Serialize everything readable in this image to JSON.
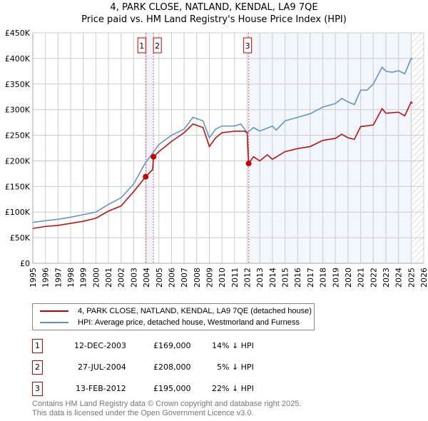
{
  "title": "4, PARK CLOSE, NATLAND, KENDAL, LA9 7QE",
  "subtitle": "Price paid vs. HM Land Registry's House Price Index (HPI)",
  "chart_data": {
    "type": "line",
    "title": "4, PARK CLOSE, NATLAND, KENDAL, LA9 7QE",
    "xlim": [
      1995,
      2026
    ],
    "ylim": [
      0,
      450000
    ],
    "yticks": [
      "£0",
      "£50K",
      "£100K",
      "£150K",
      "£200K",
      "£250K",
      "£300K",
      "£350K",
      "£400K",
      "£450K"
    ],
    "xticks": [
      "1995",
      "1996",
      "1997",
      "1998",
      "1999",
      "2000",
      "2001",
      "2002",
      "2003",
      "2004",
      "2005",
      "2006",
      "2007",
      "2008",
      "2009",
      "2010",
      "2011",
      "2012",
      "2013",
      "2014",
      "2015",
      "2016",
      "2017",
      "2018",
      "2019",
      "2020",
      "2021",
      "2022",
      "2023",
      "2024",
      "2025",
      "2026"
    ],
    "series": [
      {
        "name": "4, PARK CLOSE, NATLAND, KENDAL, LA9 7QE (detached house)",
        "color": "#cc0000",
        "x": [
          1995,
          1996,
          1997,
          1998,
          1999,
          2000,
          2001,
          2002,
          2003,
          2003.95,
          2004.5,
          2004.57,
          2005,
          2006,
          2007,
          2007.7,
          2008.5,
          2009,
          2009.5,
          2010,
          2011,
          2011.8,
          2012.0,
          2012.12,
          2012.5,
          2013,
          2013.6,
          2014,
          2015,
          2016,
          2017,
          2018,
          2019,
          2019.5,
          2020,
          2020.5,
          2021,
          2022,
          2022.7,
          2023,
          2024,
          2024.5,
          2025,
          2025.1
        ],
        "y": [
          68000,
          72000,
          74000,
          78000,
          82000,
          88000,
          102000,
          112000,
          140000,
          169000,
          183000,
          208000,
          218000,
          238000,
          255000,
          272000,
          265000,
          228000,
          245000,
          255000,
          258000,
          258000,
          255000,
          195000,
          208000,
          200000,
          212000,
          203000,
          218000,
          224000,
          228000,
          240000,
          244000,
          252000,
          245000,
          242000,
          267000,
          270000,
          302000,
          293000,
          295000,
          288000,
          315000,
          312000
        ]
      },
      {
        "name": "HPI: Average price, detached house, Westmorland and Furness",
        "color": "#5b8fd0",
        "x": [
          1995,
          1996,
          1997,
          1998,
          1999,
          2000,
          2001,
          2002,
          2003,
          2003.9,
          2004.5,
          2005,
          2006,
          2007,
          2007.7,
          2008.5,
          2009,
          2009.5,
          2010,
          2011,
          2011.5,
          2012,
          2012.5,
          2013,
          2014,
          2014.3,
          2015,
          2016,
          2017,
          2018,
          2019,
          2019.5,
          2020,
          2020.5,
          2021,
          2021.5,
          2022,
          2022.7,
          2023,
          2023.5,
          2024,
          2024.5,
          2025,
          2025.1
        ],
        "y": [
          80000,
          83000,
          86000,
          90000,
          95000,
          100000,
          115000,
          128000,
          155000,
          195000,
          215000,
          232000,
          250000,
          262000,
          285000,
          278000,
          245000,
          262000,
          268000,
          268000,
          272000,
          255000,
          265000,
          258000,
          268000,
          260000,
          278000,
          285000,
          292000,
          305000,
          312000,
          322000,
          315000,
          310000,
          338000,
          338000,
          350000,
          383000,
          375000,
          373000,
          376000,
          370000,
          400000,
          398000
        ]
      }
    ],
    "sales": [
      {
        "label": "1",
        "x": 2003.95,
        "y": 169000,
        "date": "12-DEC-2003",
        "price": "£169,000",
        "diff": "14% ↓ HPI"
      },
      {
        "label": "2",
        "x": 2004.57,
        "y": 208000,
        "date": "27-JUL-2004",
        "price": "£208,000",
        "diff": "5% ↓ HPI"
      },
      {
        "label": "3",
        "x": 2012.12,
        "y": 195000,
        "date": "13-FEB-2012",
        "price": "£195,000",
        "diff": "22% ↓ HPI"
      }
    ],
    "grid": true,
    "legend": "bottom"
  },
  "legend": {
    "property": "4, PARK CLOSE, NATLAND, KENDAL, LA9 7QE (detached house)",
    "hpi": "HPI: Average price, detached house, Westmorland and Furness"
  },
  "footer": {
    "line1": "Contains HM Land Registry data © Crown copyright and database right 2025.",
    "line2": "This data is licensed under the Open Government Licence v3.0."
  }
}
